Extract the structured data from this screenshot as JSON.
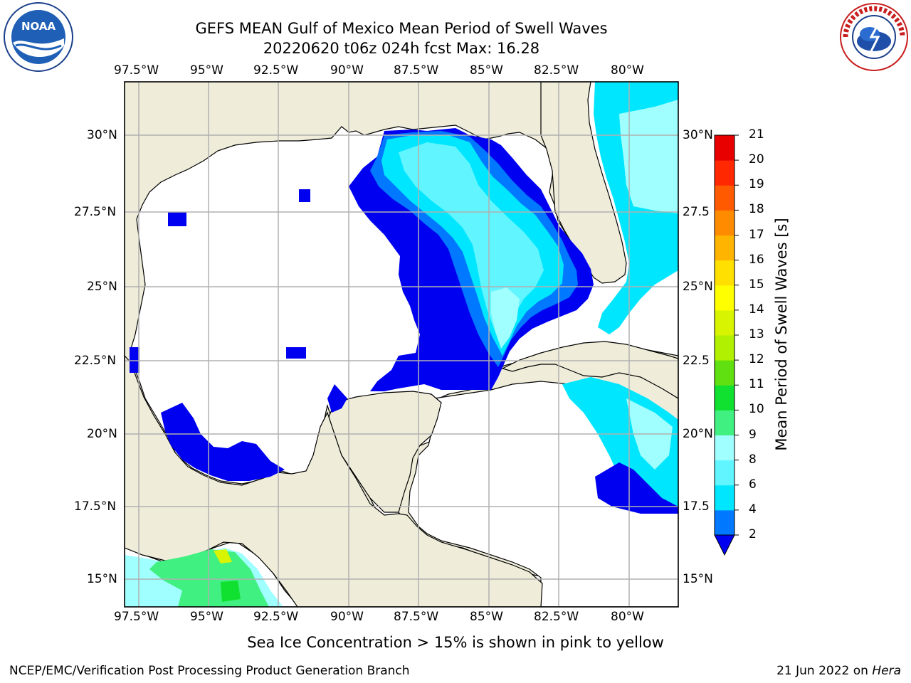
{
  "header": {
    "title_line1": "GEFS MEAN Gulf of Mexico Mean Period of Swell Waves",
    "title_line2": "20220620 t06z 024h fcst   Max: 16.28"
  },
  "logos": {
    "left_text": "NOAA",
    "left_ring_text": "NATIONAL OCEANIC AND ATMOSPHERIC ADMINISTRATION · U.S. DEPARTMENT OF COMMERCE",
    "right_ring_text": "NATIONAL WEATHER SERVICE"
  },
  "map": {
    "lon_labels": [
      "97.5°W",
      "95°W",
      "92.5°W",
      "90°W",
      "87.5°W",
      "85°W",
      "82.5°W",
      "80°W"
    ],
    "lat_labels_left": [
      "30°N",
      "27.5°N",
      "25°N",
      "22.5°N",
      "20°N",
      "17.5°N",
      "15°N"
    ],
    "lat_labels_right": [
      "30°N",
      "27.5",
      "25°N",
      "22.5",
      "20°N",
      "17.5",
      "15°N"
    ],
    "colors": {
      "land": "#efedda",
      "ocean_blank": "#ffffff",
      "grid": "#b0b0b0",
      "coast": "#000000"
    }
  },
  "colorbar": {
    "label": "Mean Period of Swell Waves [s]",
    "ticks": [
      "2",
      "4",
      "6",
      "8",
      "9",
      "10",
      "11",
      "12",
      "13",
      "14",
      "15",
      "16",
      "17",
      "18",
      "19",
      "20",
      "21"
    ],
    "colors": [
      "#0000f0",
      "#0078ff",
      "#00e6ff",
      "#60f5ff",
      "#a0ffff",
      "#40f080",
      "#10e030",
      "#60e010",
      "#b0f000",
      "#d8f400",
      "#ffff00",
      "#ffe000",
      "#ffb400",
      "#ff8c00",
      "#ff5a00",
      "#ff2800",
      "#e80000"
    ],
    "extend_color": "#0000f0"
  },
  "footer": {
    "note": "Sea Ice Concentration > 15% is shown in pink to yellow",
    "credit": "NCEP/EMC/Verification Post Processing Product Generation Branch",
    "date": "21 Jun 2022 on",
    "machine": "Hera"
  }
}
